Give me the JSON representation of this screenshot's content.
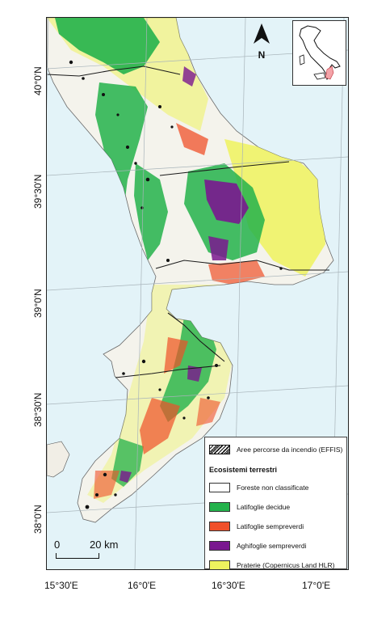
{
  "map": {
    "lat_labels": [
      "40°0'N",
      "39°30'N",
      "39°0'N",
      "38°30'N",
      "38°0'N"
    ],
    "lon_labels": [
      "15°30'E",
      "16°0'E",
      "16°30'E",
      "17°0'E"
    ],
    "north_letter": "N",
    "scale": {
      "start": "0",
      "end": "20 km"
    },
    "colors": {
      "sea": "#e3f3f8",
      "land": "#f4f3ec",
      "deciduous": "#23b24b",
      "evergreen_broadleaf": "#f0502a",
      "evergreen_conifer": "#7a178f",
      "grassland": "#eef25e",
      "burned": "#111111",
      "boundary": "#1a1a1a",
      "inset_highlight": "#f4a3a8"
    }
  },
  "legend": {
    "burned_label": "Aree percorse da incendio (EFFIS)",
    "section_title": "Ecosistemi terrestri",
    "items": [
      {
        "label": "Foreste non classificate",
        "color": "#ffffff"
      },
      {
        "label": "Latifoglie decidue",
        "color": "#23b24b"
      },
      {
        "label": "Latifoglie sempreverdi",
        "color": "#f0502a"
      },
      {
        "label": "Aghifoglie sempreverdi",
        "color": "#7a178f"
      },
      {
        "label": "Praterie (Copernicus Land HLR)",
        "color": "#eef25e"
      }
    ]
  }
}
